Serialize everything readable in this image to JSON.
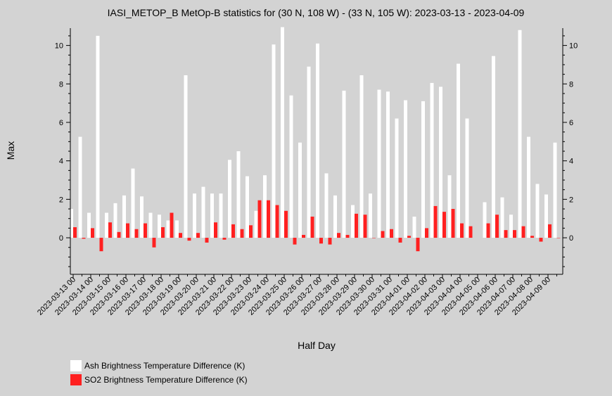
{
  "chart_data": {
    "type": "bar",
    "title": "IASI_METOP_B MetOp-B statistics for (30 N, 108 W) - (33 N, 105 W): 2023-03-13 - 2023-04-09",
    "xlabel": "Half Day",
    "ylabel": "Max",
    "ylim": [
      -1.9,
      10.9
    ],
    "yticks": [
      0,
      2,
      4,
      6,
      8,
      10
    ],
    "x_tick_labels": [
      "2023-03-13 00",
      "2023-03-14 00",
      "2023-03-15 00",
      "2023-03-16 00",
      "2023-03-17 00",
      "2023-03-18 00",
      "2023-03-19 00",
      "2023-03-20 00",
      "2023-03-21 00",
      "2023-03-22 00",
      "2023-03-23 00",
      "2023-03-24 00",
      "2023-03-25 00",
      "2023-03-26 00",
      "2023-03-27 00",
      "2023-03-28 00",
      "2023-03-29 00",
      "2023-03-30 00",
      "2023-03-31 00",
      "2023-04-01 00",
      "2023-04-02 00",
      "2023-04-03 00",
      "2023-04-04 00",
      "2023-04-05 00",
      "2023-04-06 00",
      "2023-04-07 00",
      "2023-04-08 00",
      "2023-04-09 00"
    ],
    "legend_placement": "bottom-left",
    "series": [
      {
        "name": "Ash Brightness Temperature Difference (K)",
        "color": "#ffffff",
        "values": [
          1.5,
          5.25,
          1.3,
          10.5,
          1.3,
          1.8,
          2.2,
          3.6,
          2.15,
          1.3,
          1.2,
          0.9,
          0.9,
          8.45,
          2.3,
          2.65,
          2.3,
          2.3,
          4.05,
          4.5,
          3.2,
          1.4,
          3.25,
          10.05,
          10.95,
          7.4,
          4.95,
          8.9,
          10.1,
          3.35,
          2.2,
          7.65,
          1.7,
          8.45,
          2.3,
          7.7,
          7.6,
          6.2,
          7.15,
          1.1,
          7.1,
          8.05,
          7.85,
          3.25,
          9.05,
          6.2,
          null,
          1.85,
          9.45,
          2.1,
          1.2,
          10.8,
          5.25,
          2.8,
          2.25,
          4.95
        ]
      },
      {
        "name": "SO2 Brightness Temperature Difference (K)",
        "color": "#ff2020",
        "values": [
          0.55,
          -0.05,
          0.5,
          -0.7,
          0.8,
          0.3,
          0.75,
          0.45,
          0.75,
          -0.5,
          0.55,
          1.3,
          0.25,
          -0.15,
          0.25,
          -0.25,
          0.8,
          -0.1,
          0.7,
          0.45,
          0.65,
          1.95,
          1.95,
          1.7,
          1.4,
          -0.35,
          0.15,
          1.1,
          -0.3,
          -0.35,
          0.25,
          0.15,
          1.25,
          1.2,
          0,
          0.35,
          0.45,
          -0.25,
          0.1,
          -0.7,
          0.5,
          1.65,
          1.35,
          1.5,
          0.75,
          0.6,
          null,
          0.75,
          1.2,
          0.4,
          0.4,
          0.6,
          0.1,
          -0.2,
          0.7,
          0
        ]
      }
    ]
  }
}
